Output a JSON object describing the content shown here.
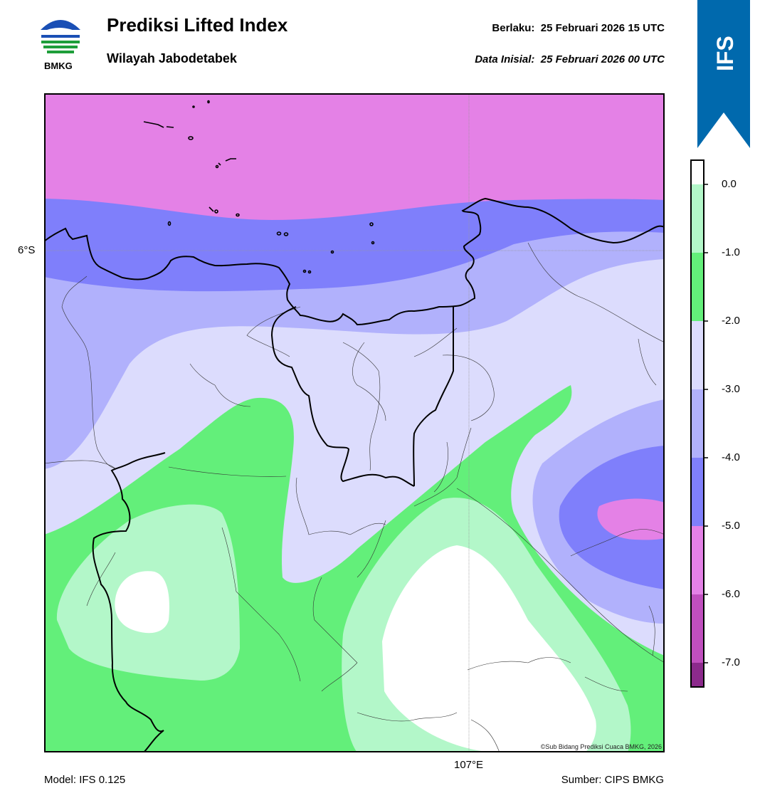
{
  "header": {
    "title": "Prediksi Lifted Index",
    "subtitle": "Wilayah Jabodetabek",
    "valid_label": "Berlaku:  25 Februari 2026 15 UTC",
    "init_label": "Data Inisial:  25 Februari 2026 00 UTC"
  },
  "logo": {
    "text": "BMKG",
    "icon": "bmkg-logo"
  },
  "ribbon": {
    "text": "IFS",
    "color": "#0069ad"
  },
  "axes": {
    "lat_label": "6°S",
    "lon_label": "107°E"
  },
  "footer": {
    "model": "Model: IFS 0.125",
    "source": "Sumber: CIPS BMKG",
    "copyright": "©Sub Bidang Prediksi Cuaca BMKG, 2026"
  },
  "colorbar": {
    "ticks": [
      "0.0",
      "-1.0",
      "-2.0",
      "-3.0",
      "-4.0",
      "-5.0",
      "-6.0",
      "-7.0"
    ],
    "colors": {
      "above_0": "#ffffff",
      "0_to_-1": "#b3f7c9",
      "-1_to_-2": "#63ef7a",
      "-2_to_-3": "#dcdcfd",
      "-3_to_-4": "#b1b1fc",
      "-4_to_-5": "#7f7ffb",
      "-5_to_-6": "#e481e6",
      "-6_to_-7": "#c04fbe",
      "below_-7": "#8c2a8c"
    }
  }
}
